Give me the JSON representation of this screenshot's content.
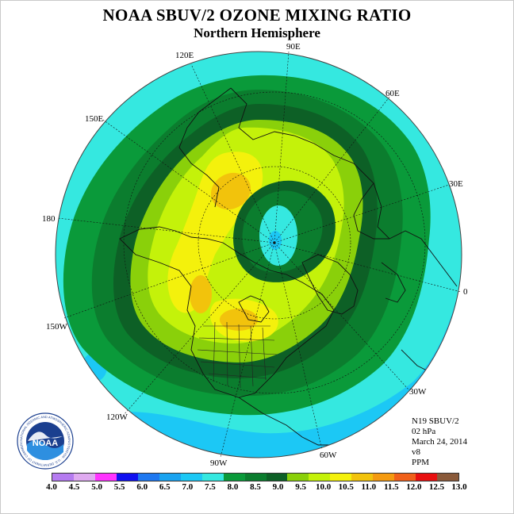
{
  "header": {
    "title": "NOAA SBUV/2 OZONE MIXING RATIO",
    "subtitle": "Northern Hemisphere"
  },
  "map": {
    "projection": "north-polar-stereographic",
    "longitude_labels": [
      "90E",
      "60E",
      "30E",
      "0",
      "30W",
      "60W",
      "90W",
      "120W",
      "150W",
      "180",
      "150E",
      "120E"
    ]
  },
  "info": {
    "lines": [
      "N19 SBUV/2",
      "02 hPa",
      "March 24, 2014",
      "v8",
      "PPM"
    ]
  },
  "colorbar": {
    "tick_labels": [
      "4.0",
      "4.5",
      "5.0",
      "5.5",
      "6.0",
      "6.5",
      "7.0",
      "7.5",
      "8.0",
      "8.5",
      "9.0",
      "9.5",
      "10.0",
      "10.5",
      "11.0",
      "11.5",
      "12.0",
      "12.5",
      "13.0"
    ],
    "colors": [
      "#b57bf0",
      "#dfaaf0",
      "#ff33ff",
      "#1010f0",
      "#1e78f0",
      "#1aa3f0",
      "#1cc8f5",
      "#35e8e0",
      "#0a9a3a",
      "#0b7d2e",
      "#0d6026",
      "#8ad00a",
      "#c4f20a",
      "#f4f10c",
      "#f2c30c",
      "#f49a10",
      "#f0601a",
      "#e81010",
      "#8a5a3a"
    ]
  },
  "logo": {
    "text": "NOAA",
    "ring_text": "NATIONAL OCEANIC AND ATMOSPHERIC ADMINISTRATION · U.S. DEPARTMENT OF COMMERCE"
  }
}
